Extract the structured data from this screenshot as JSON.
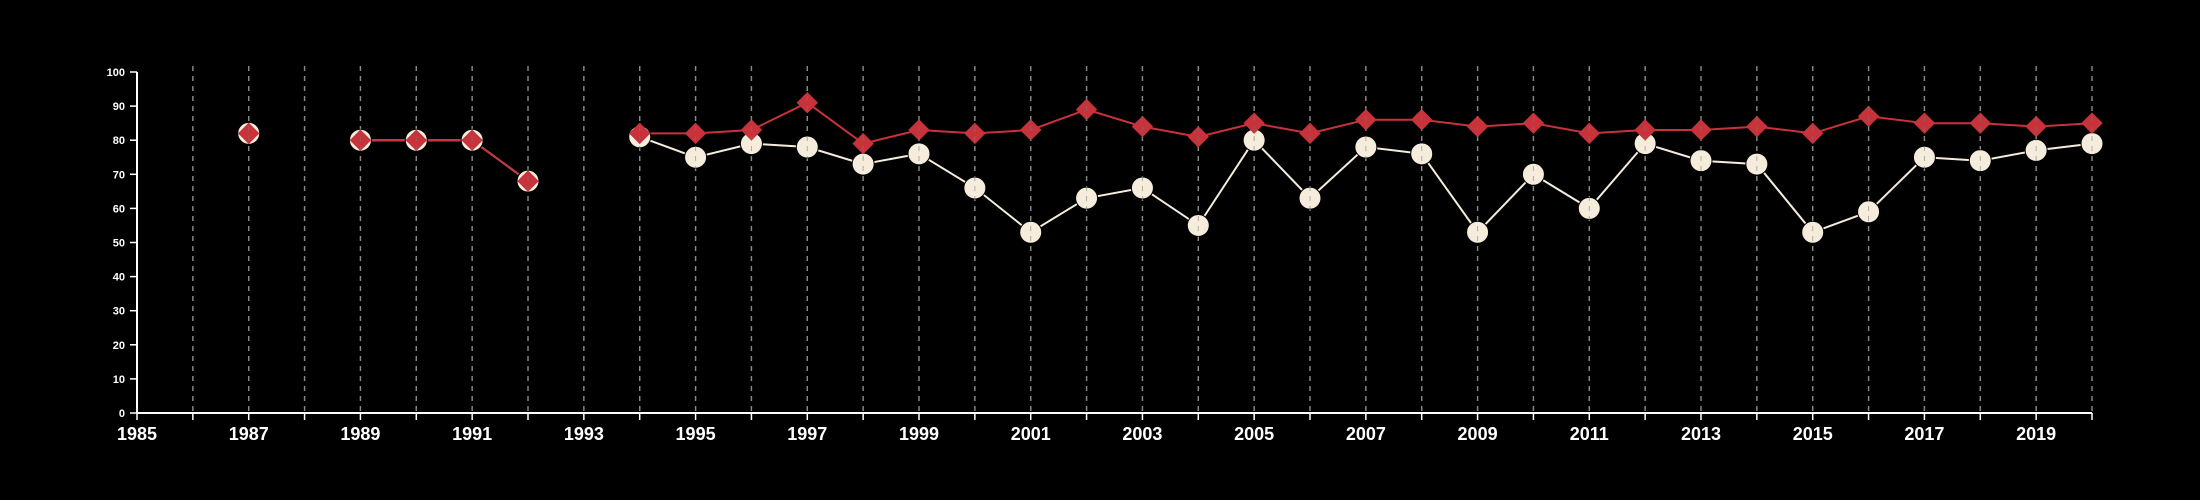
{
  "chart_data": {
    "type": "line",
    "x": [
      1987,
      1989,
      1990,
      1991,
      1992,
      1994,
      1995,
      1996,
      1997,
      1998,
      1999,
      2000,
      2001,
      2002,
      2003,
      2004,
      2005,
      2006,
      2007,
      2008,
      2009,
      2010,
      2011,
      2012,
      2013,
      2014,
      2015,
      2016,
      2017,
      2018,
      2019,
      2020
    ],
    "series": [
      {
        "marker": "diamond",
        "color": "#c8323a",
        "values": [
          82,
          80,
          80,
          80,
          68,
          82,
          82,
          83,
          91,
          79,
          83,
          82,
          83,
          89,
          84,
          81,
          85,
          82,
          86,
          86,
          84,
          85,
          82,
          83,
          83,
          84,
          82,
          87,
          85,
          85,
          84,
          85
        ]
      },
      {
        "marker": "circle",
        "color": "#f5ecdc",
        "values": [
          82,
          80,
          80,
          80,
          68,
          81,
          75,
          79,
          78,
          73,
          76,
          66,
          53,
          63,
          66,
          55,
          80,
          63,
          78,
          76,
          53,
          70,
          60,
          79,
          74,
          73,
          53,
          59,
          75,
          74,
          77,
          79
        ]
      }
    ],
    "xlim": [
      1985,
      2020
    ],
    "ylim": [
      0,
      100
    ],
    "xticks": [
      "1985",
      "1987",
      "1989",
      "1991",
      "1993",
      "1995",
      "1997",
      "1999",
      "2001",
      "2003",
      "2005",
      "2007",
      "2009",
      "2011",
      "2013",
      "2015",
      "2017",
      "2019"
    ],
    "yticks": [
      "0",
      "10",
      "20",
      "30",
      "40",
      "50",
      "60",
      "70",
      "80",
      "90",
      "100"
    ],
    "vertical_gridlines": "dashed, every year",
    "background": "#000000",
    "axis_color": "#ffffff"
  }
}
